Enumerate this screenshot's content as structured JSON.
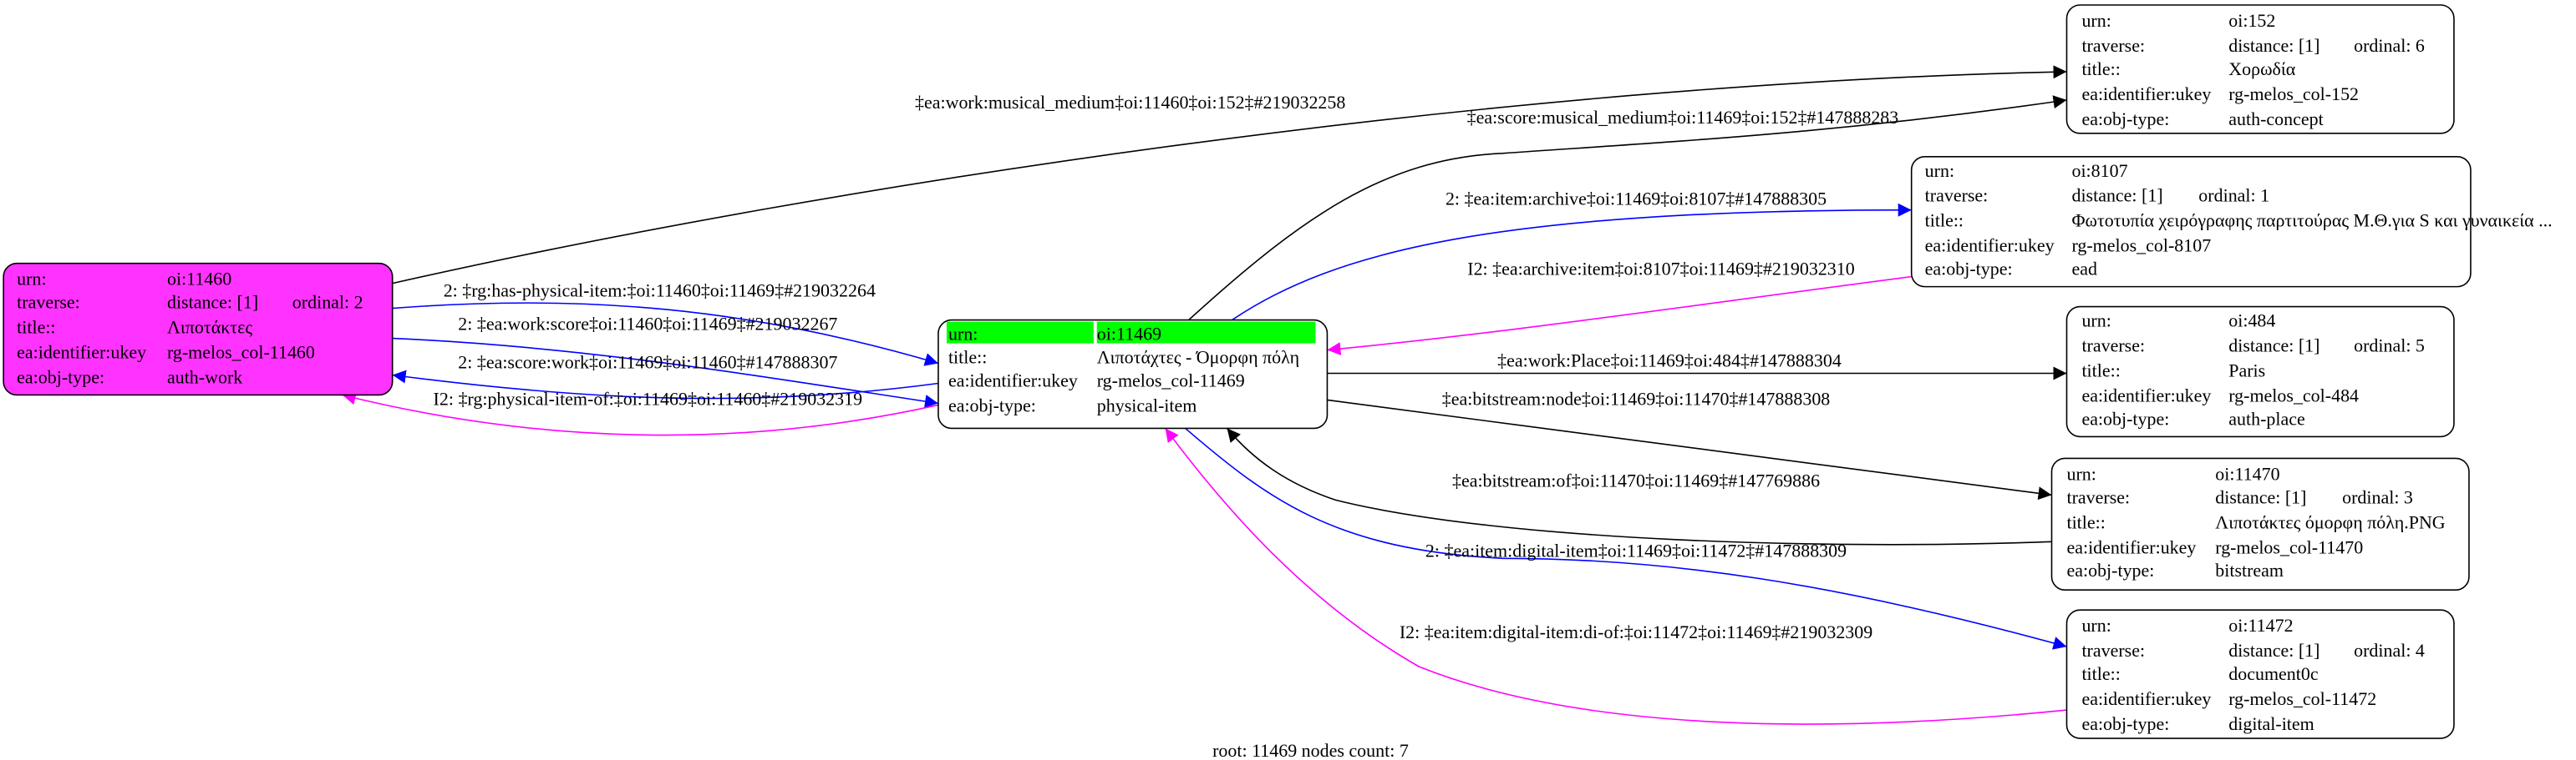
{
  "colors": {
    "root_node_fill": "#ff33ff",
    "focus_row_fill": "#00ff00",
    "edge_default": "#000000",
    "edge_forward": "#0000ff",
    "edge_inverse": "#ff00ff"
  },
  "nodes": [
    {
      "id": "11460",
      "highlight": true,
      "rows": [
        {
          "label": "urn:",
          "value": "oi:11460"
        },
        {
          "label": "traverse:",
          "value": "distance: [1]",
          "extra": "ordinal: 2"
        },
        {
          "label": "title::",
          "value": "Λιποτάκτες"
        },
        {
          "label": "ea:identifier:ukey",
          "value": "rg-melos_col-11460"
        },
        {
          "label": "ea:obj-type:",
          "value": "auth-work"
        }
      ]
    },
    {
      "id": "11469",
      "root": true,
      "rows": [
        {
          "label": "urn:",
          "value": "oi:11469"
        },
        {
          "label": "title::",
          "value": "Λιποτάχτες - Όμορφη πόλη"
        },
        {
          "label": "ea:identifier:ukey",
          "value": "rg-melos_col-11469"
        },
        {
          "label": "ea:obj-type:",
          "value": "physical-item"
        }
      ]
    },
    {
      "id": "152",
      "rows": [
        {
          "label": "urn:",
          "value": "oi:152"
        },
        {
          "label": "traverse:",
          "value": "distance: [1]",
          "extra": "ordinal: 6"
        },
        {
          "label": "title::",
          "value": "Χορωδία"
        },
        {
          "label": "ea:identifier:ukey",
          "value": "rg-melos_col-152"
        },
        {
          "label": "ea:obj-type:",
          "value": "auth-concept"
        }
      ]
    },
    {
      "id": "8107",
      "rows": [
        {
          "label": "urn:",
          "value": "oi:8107"
        },
        {
          "label": "traverse:",
          "value": "distance: [1]",
          "extra": "ordinal: 1"
        },
        {
          "label": "title::",
          "value": "Φωτοτυπία χειρόγραφης παρτιτούρας Μ.Θ.για S και γυναικεία ..."
        },
        {
          "label": "ea:identifier:ukey",
          "value": "rg-melos_col-8107"
        },
        {
          "label": "ea:obj-type:",
          "value": "ead"
        }
      ]
    },
    {
      "id": "484",
      "rows": [
        {
          "label": "urn:",
          "value": "oi:484"
        },
        {
          "label": "traverse:",
          "value": "distance: [1]",
          "extra": "ordinal: 5"
        },
        {
          "label": "title::",
          "value": "Paris"
        },
        {
          "label": "ea:identifier:ukey",
          "value": "rg-melos_col-484"
        },
        {
          "label": "ea:obj-type:",
          "value": "auth-place"
        }
      ]
    },
    {
      "id": "11470",
      "rows": [
        {
          "label": "urn:",
          "value": "oi:11470"
        },
        {
          "label": "traverse:",
          "value": "distance: [1]",
          "extra": "ordinal: 3"
        },
        {
          "label": "title::",
          "value": "Λιποτάκτες όμορφη πόλη.PNG"
        },
        {
          "label": "ea:identifier:ukey",
          "value": "rg-melos_col-11470"
        },
        {
          "label": "ea:obj-type:",
          "value": "bitstream"
        }
      ]
    },
    {
      "id": "11472",
      "rows": [
        {
          "label": "urn:",
          "value": "oi:11472"
        },
        {
          "label": "traverse:",
          "value": "distance: [1]",
          "extra": "ordinal: 4"
        },
        {
          "label": "title::",
          "value": "document0c"
        },
        {
          "label": "ea:identifier:ukey",
          "value": "rg-melos_col-11472"
        },
        {
          "label": "ea:obj-type:",
          "value": "digital-item"
        }
      ]
    }
  ],
  "edges": [
    {
      "from": "11460",
      "to": "152",
      "kind": "default",
      "label": "‡ea:work:musical_medium‡oi:11460‡oi:152‡#219032258"
    },
    {
      "from": "11469",
      "to": "152",
      "kind": "default",
      "label": "‡ea:score:musical_medium‡oi:11469‡oi:152‡#147888283"
    },
    {
      "from": "11469",
      "to": "8107",
      "kind": "forward",
      "label": "2: ‡ea:item:archive‡oi:11469‡oi:8107‡#147888305"
    },
    {
      "from": "8107",
      "to": "11469",
      "kind": "inverse",
      "label": "I2: ‡ea:archive:item‡oi:8107‡oi:11469‡#219032310"
    },
    {
      "from": "11460",
      "to": "11469",
      "kind": "forward",
      "label": "2: ‡rg:has-physical-item:‡oi:11460‡oi:11469‡#219032264"
    },
    {
      "from": "11460",
      "to": "11469",
      "kind": "forward",
      "label": "2: ‡ea:work:score‡oi:11460‡oi:11469‡#219032267"
    },
    {
      "from": "11469",
      "to": "11460",
      "kind": "forward",
      "label": "2: ‡ea:score:work‡oi:11469‡oi:11460‡#147888307"
    },
    {
      "from": "11469",
      "to": "11460",
      "kind": "inverse",
      "label": "I2: ‡rg:physical-item-of:‡oi:11469‡oi:11460‡#219032319"
    },
    {
      "from": "11469",
      "to": "484",
      "kind": "default",
      "label": "‡ea:work:Place‡oi:11469‡oi:484‡#147888304"
    },
    {
      "from": "11469",
      "to": "11470",
      "kind": "default",
      "label": "‡ea:bitstream:node‡oi:11469‡oi:11470‡#147888308"
    },
    {
      "from": "11470",
      "to": "11469",
      "kind": "default",
      "label": "‡ea:bitstream:of‡oi:11470‡oi:11469‡#147769886"
    },
    {
      "from": "11469",
      "to": "11472",
      "kind": "forward",
      "label": "2: ‡ea:item:digital-item‡oi:11469‡oi:11472‡#147888309"
    },
    {
      "from": "11472",
      "to": "11469",
      "kind": "inverse",
      "label": "I2: ‡ea:item:digital-item:di-of:‡oi:11472‡oi:11469‡#219032309"
    }
  ],
  "footer": "root: 11469 nodes count: 7"
}
